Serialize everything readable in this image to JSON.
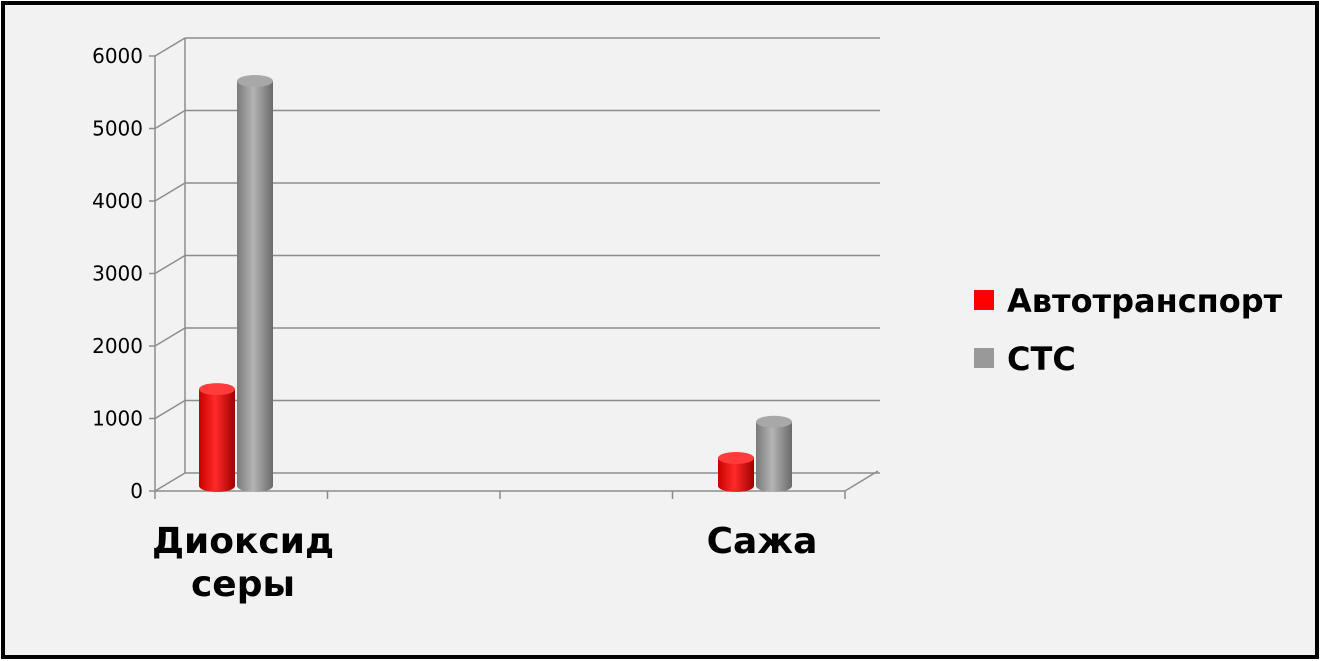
{
  "chart_data": {
    "type": "bar",
    "categories": [
      "Диоксид серы",
      "Сажа"
    ],
    "category_lines": [
      [
        "Диоксид",
        "серы"
      ],
      [
        "Сажа"
      ]
    ],
    "series": [
      {
        "name": "Автотранспорт",
        "values": [
          1350,
          400
        ],
        "color": "#ff0000"
      },
      {
        "name": "СТС",
        "values": [
          5600,
          900
        ],
        "color": "#969696"
      }
    ],
    "ylim": [
      0,
      6000
    ],
    "yticks": [
      "0",
      "1000",
      "2000",
      "3000",
      "4000",
      "5000",
      "6000"
    ],
    "grid": true,
    "legend": "right",
    "three_d": true
  }
}
